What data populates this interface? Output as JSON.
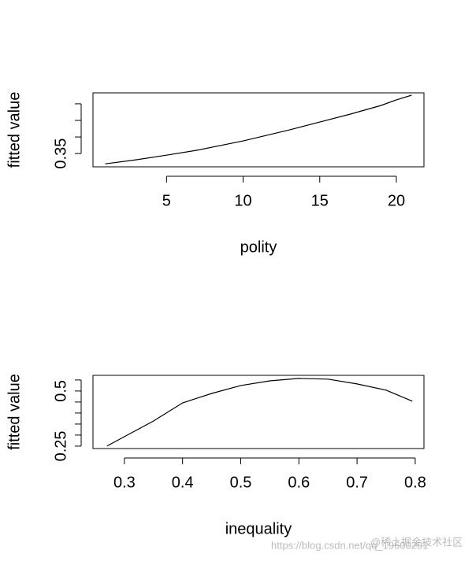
{
  "chart_data": [
    {
      "type": "line",
      "xlabel": "polity",
      "ylabel": "fitted value",
      "color": "#000000",
      "x": [
        1,
        3,
        5,
        7,
        10,
        13,
        15,
        17,
        19,
        20,
        21
      ],
      "values": [
        0.319,
        0.331,
        0.345,
        0.36,
        0.388,
        0.421,
        0.445,
        0.469,
        0.495,
        0.512,
        0.526
      ],
      "xlim": [
        0.2,
        21.8
      ],
      "xticks": [
        5,
        10,
        15,
        20
      ],
      "ylim": [
        0.31,
        0.533
      ],
      "yticks": [
        0.35,
        {
          "value": 0.4,
          "label": null
        },
        {
          "value": 0.45,
          "label": null
        },
        {
          "value": 0.5,
          "label": null
        }
      ]
    },
    {
      "type": "line",
      "xlabel": "inequality",
      "ylabel": "fitted value",
      "color": "#000000",
      "x": [
        0.27,
        0.3,
        0.35,
        0.4,
        0.45,
        0.5,
        0.55,
        0.6,
        0.65,
        0.7,
        0.75,
        0.795
      ],
      "values": [
        0.25,
        0.293,
        0.364,
        0.446,
        0.489,
        0.525,
        0.546,
        0.557,
        0.554,
        0.532,
        0.504,
        0.454
      ],
      "xlim": [
        0.246,
        0.815
      ],
      "xticks": [
        0.3,
        0.4,
        0.5,
        0.6,
        0.7,
        0.8
      ],
      "ylim": [
        0.239,
        0.571
      ],
      "yticks": [
        0.25,
        {
          "value": 0.3,
          "label": null
        },
        {
          "value": 0.35,
          "label": null
        },
        {
          "value": 0.4,
          "label": null
        },
        {
          "value": 0.45,
          "label": null
        },
        0.5,
        {
          "value": 0.55,
          "label": null
        }
      ]
    }
  ],
  "watermark": {
    "url": "https://blog.csdn.net/qq_19600291",
    "site": "@稀土掘金技术社区"
  }
}
